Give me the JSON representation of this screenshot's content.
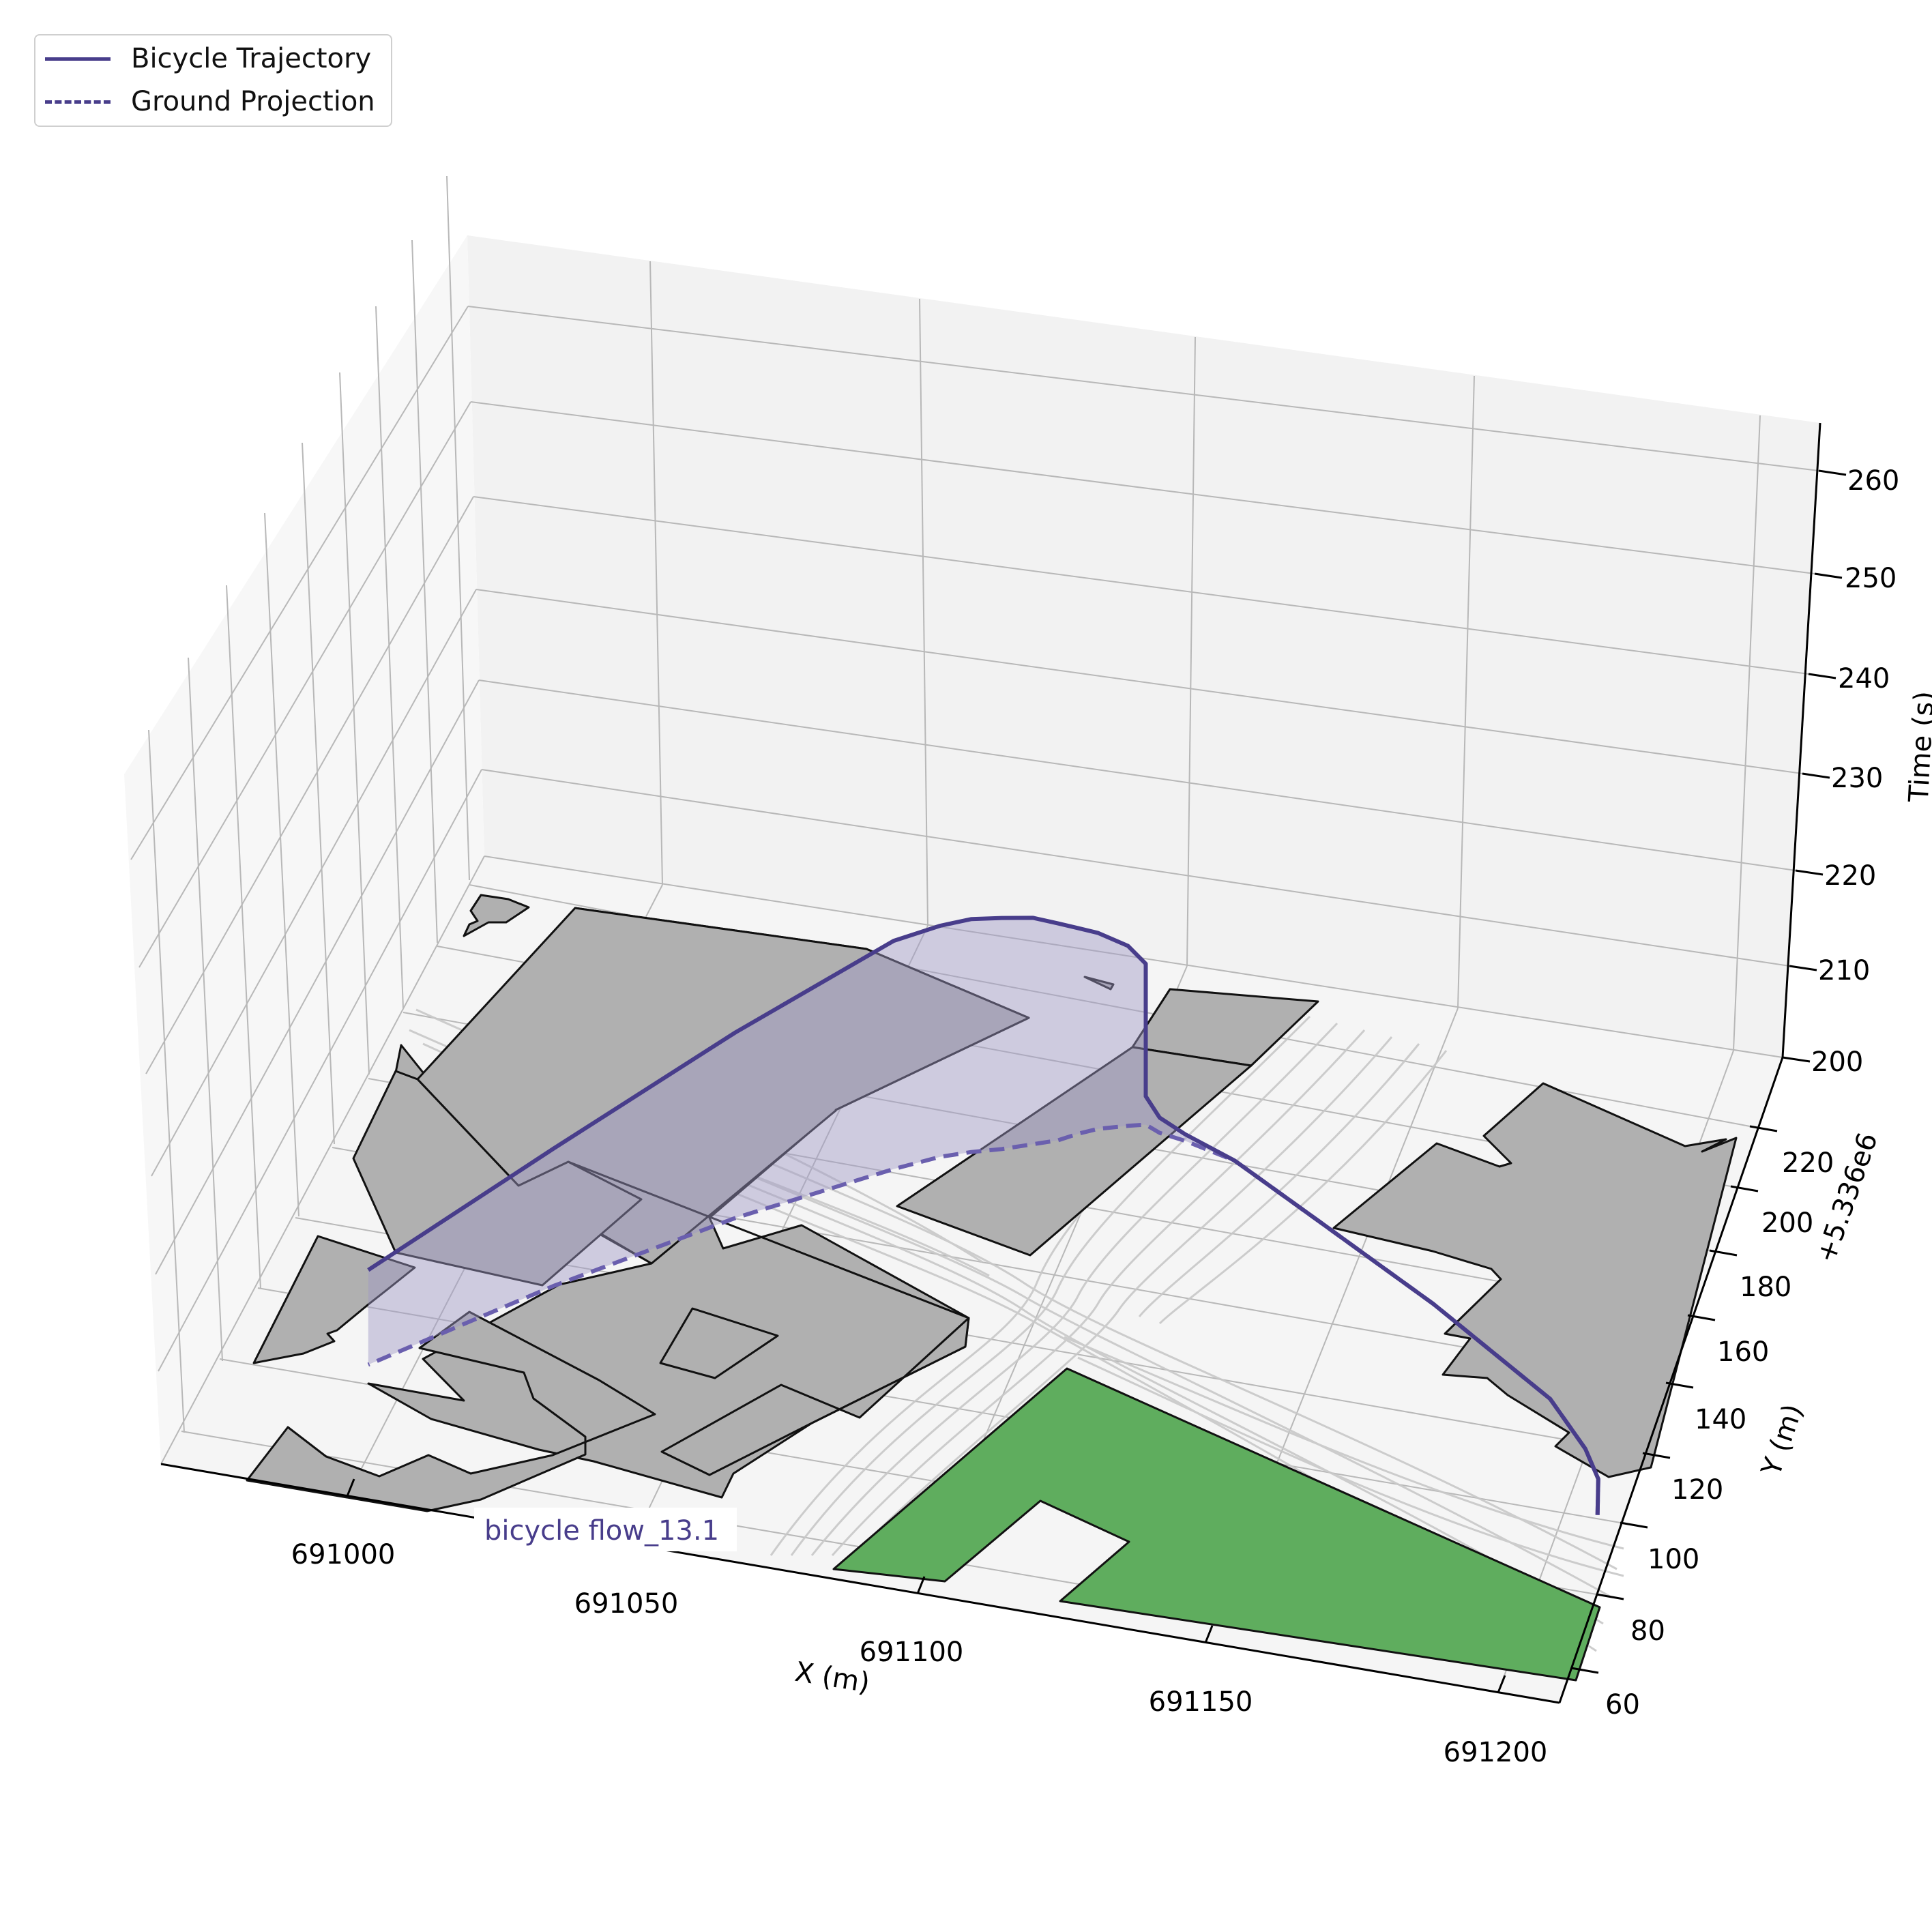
{
  "chart_data": {
    "type": "line",
    "projection": "3d",
    "title": "",
    "xlabel": "X (m)",
    "ylabel": "Y (m)",
    "zlabel": "Time (s)",
    "y_offset_label": "+5.336e6",
    "x_ticks": [
      "691000",
      "691050",
      "691100",
      "691150",
      "691200"
    ],
    "y_ticks": [
      "60",
      "80",
      "100",
      "120",
      "140",
      "160",
      "180",
      "200",
      "220"
    ],
    "z_ticks": [
      "200",
      "210",
      "220",
      "230",
      "240",
      "250",
      "260"
    ],
    "xlim": [
      690970,
      691215
    ],
    "ylim": [
      58,
      228
    ],
    "zlim": [
      199,
      266
    ],
    "grid": true,
    "legend": {
      "placement": "top-left",
      "entries": [
        {
          "label": "Bicycle Trajectory",
          "style": "solid"
        },
        {
          "label": "Ground Projection",
          "style": "dashed"
        }
      ]
    },
    "annotation": {
      "text": "bicycle flow_13.1"
    },
    "colors": {
      "trajectory": "#483d8b",
      "curtain_fill": "#9f9ac6",
      "building": "#b0b0b0",
      "green_area": "#5fad5e",
      "pane_back": "#f2f2f2",
      "pane_side": "#f7f7f7",
      "pane_floor": "#f5f5f5",
      "grid": "#b8b8b8"
    },
    "series": [
      {
        "name": "Bicycle Trajectory",
        "points": [
          {
            "x": 691211,
            "y": 104,
            "t": 200
          },
          {
            "x": 691209,
            "y": 113,
            "t": 200
          },
          {
            "x": 691205,
            "y": 120,
            "t": 200
          },
          {
            "x": 691196,
            "y": 131,
            "t": 200
          },
          {
            "x": 691170,
            "y": 150,
            "t": 200
          },
          {
            "x": 691145,
            "y": 166,
            "t": 200
          },
          {
            "x": 691126,
            "y": 178,
            "t": 200
          },
          {
            "x": 691116,
            "y": 181,
            "t": 200.7
          },
          {
            "x": 691111,
            "y": 182,
            "t": 201.6
          },
          {
            "x": 691108,
            "y": 183.5,
            "t": 203
          },
          {
            "x": 691108,
            "y": 183.5,
            "t": 217
          },
          {
            "x": 691105,
            "y": 182.5,
            "t": 219
          },
          {
            "x": 691100,
            "y": 180.5,
            "t": 220.7
          },
          {
            "x": 691097,
            "y": 178.5,
            "t": 221.7
          },
          {
            "x": 691094,
            "y": 176,
            "t": 222.9
          },
          {
            "x": 691090,
            "y": 174,
            "t": 223.9
          },
          {
            "x": 691085,
            "y": 171.5,
            "t": 224.4
          },
          {
            "x": 691080,
            "y": 169.5,
            "t": 224.6
          },
          {
            "x": 691075,
            "y": 167,
            "t": 224.4
          },
          {
            "x": 691068,
            "y": 162,
            "t": 224.1
          },
          {
            "x": 691045,
            "y": 143,
            "t": 219.6
          },
          {
            "x": 691020,
            "y": 118,
            "t": 214.5
          },
          {
            "x": 690996,
            "y": 90,
            "t": 210
          }
        ]
      },
      {
        "name": "Ground Projection",
        "points": [
          {
            "x": 691211,
            "y": 104,
            "t": 200
          },
          {
            "x": 691209,
            "y": 113,
            "t": 200
          },
          {
            "x": 691205,
            "y": 120,
            "t": 200
          },
          {
            "x": 691196,
            "y": 131,
            "t": 200
          },
          {
            "x": 691170,
            "y": 150,
            "t": 200
          },
          {
            "x": 691145,
            "y": 166,
            "t": 200
          },
          {
            "x": 691126,
            "y": 178,
            "t": 200
          },
          {
            "x": 691116,
            "y": 181,
            "t": 200
          },
          {
            "x": 691111,
            "y": 182,
            "t": 200
          },
          {
            "x": 691108,
            "y": 183.5,
            "t": 200
          },
          {
            "x": 691105,
            "y": 182.5,
            "t": 200
          },
          {
            "x": 691100,
            "y": 180.5,
            "t": 200
          },
          {
            "x": 691097,
            "y": 178.5,
            "t": 200
          },
          {
            "x": 691094,
            "y": 176,
            "t": 200
          },
          {
            "x": 691090,
            "y": 174,
            "t": 200
          },
          {
            "x": 691085,
            "y": 171.5,
            "t": 200
          },
          {
            "x": 691080,
            "y": 169.5,
            "t": 200
          },
          {
            "x": 691075,
            "y": 167,
            "t": 200
          },
          {
            "x": 691068,
            "y": 162,
            "t": 200
          },
          {
            "x": 691045,
            "y": 143,
            "t": 200
          },
          {
            "x": 691020,
            "y": 118,
            "t": 200
          },
          {
            "x": 690996,
            "y": 90,
            "t": 200
          }
        ]
      }
    ]
  }
}
